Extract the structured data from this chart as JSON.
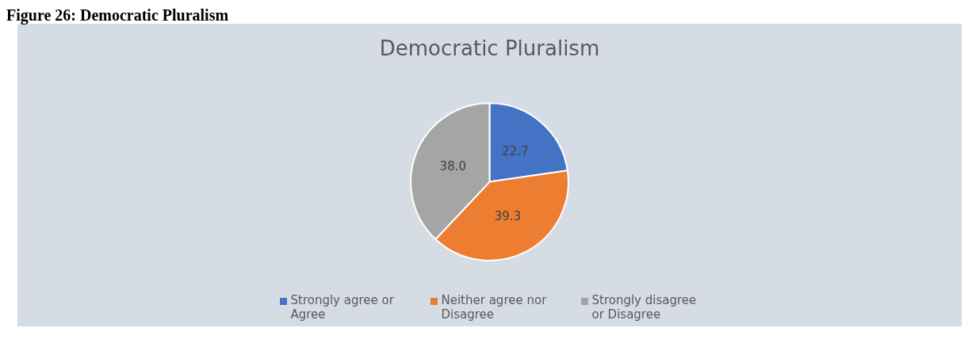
{
  "chart_data": {
    "type": "pie",
    "title": "Democratic Pluralism",
    "annotations": [
      "Figure 26: Democratic Pluralism"
    ],
    "categories": [
      "Strongly agree or Agree",
      "Neither agree nor Disagree",
      "Strongly disagree or Disagree"
    ],
    "values": [
      22.7,
      39.3,
      38.0
    ],
    "value_labels": [
      "22.7",
      "39.3",
      "38.0"
    ],
    "colors": [
      "#4472c4",
      "#ed7d31",
      "#a5a5a5"
    ],
    "legend": "bottom"
  }
}
